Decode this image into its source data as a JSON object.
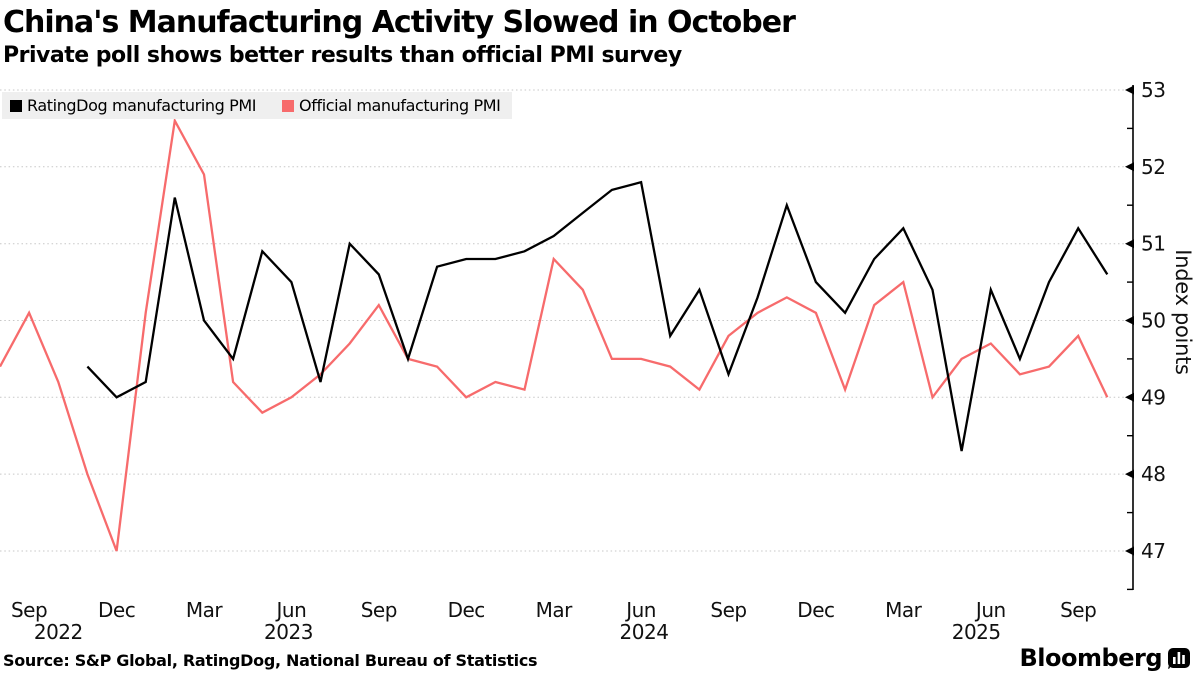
{
  "header": {
    "title": "China's Manufacturing Activity Slowed in October",
    "subtitle": "Private poll shows better results than official PMI survey"
  },
  "footer": {
    "source": "Source: S&P Global, RatingDog, National Bureau of Statistics",
    "brand": "Bloomberg",
    "brand_icon": "bar-chart-bubble-icon"
  },
  "colors": {
    "ratingdog_line": "#000000",
    "official_line": "#f76b6c",
    "legend_background": "#efefef",
    "gridline": "#c7c7c7"
  },
  "chart_data": {
    "type": "line",
    "title": "China's Manufacturing Activity Slowed in October",
    "subtitle": "Private poll shows better results than official PMI survey",
    "ylabel": "Index points",
    "ylim": [
      46.5,
      53.2
    ],
    "yticks": [
      53,
      52,
      51,
      50,
      49,
      48,
      47
    ],
    "y_minor_step": 0.5,
    "grid": "dotted-horizontal",
    "legend_position": "top-left",
    "x_unit": "month",
    "x_range": [
      "2022-08",
      "2025-10"
    ],
    "xticks": [
      {
        "label": "Sep",
        "offset": 1
      },
      {
        "label": "Dec",
        "offset": 4
      },
      {
        "label": "Mar",
        "offset": 7
      },
      {
        "label": "Jun",
        "offset": 10
      },
      {
        "label": "Sep",
        "offset": 13
      },
      {
        "label": "Dec",
        "offset": 16
      },
      {
        "label": "Mar",
        "offset": 19
      },
      {
        "label": "Jun",
        "offset": 22
      },
      {
        "label": "Sep",
        "offset": 25
      },
      {
        "label": "Dec",
        "offset": 28
      },
      {
        "label": "Mar",
        "offset": 31
      },
      {
        "label": "Jun",
        "offset": 34
      },
      {
        "label": "Sep",
        "offset": 37
      }
    ],
    "year_labels": [
      {
        "label": "2022",
        "offset": 2.0
      },
      {
        "label": "2023",
        "offset": 9.9
      },
      {
        "label": "2024",
        "offset": 22.1
      },
      {
        "label": "2025",
        "offset": 33.5
      }
    ],
    "series": [
      {
        "name": "RatingDog manufacturing PMI",
        "color": "#000000",
        "start_month": "2022-11",
        "start_offset": 3,
        "values": [
          49.4,
          49.0,
          49.2,
          51.6,
          50.0,
          49.5,
          50.9,
          50.5,
          49.2,
          51.0,
          50.6,
          49.5,
          50.7,
          50.8,
          50.8,
          50.9,
          51.1,
          51.4,
          51.7,
          51.8,
          49.8,
          50.4,
          49.3,
          50.3,
          51.5,
          50.5,
          50.1,
          50.8,
          51.2,
          50.4,
          48.3,
          50.4,
          49.5,
          50.5,
          51.2,
          50.6
        ]
      },
      {
        "name": "Official manufacturing PMI",
        "color": "#f76b6c",
        "start_month": "2022-08",
        "start_offset": 0,
        "values": [
          49.4,
          50.1,
          49.2,
          48.0,
          47.0,
          50.1,
          52.6,
          51.9,
          49.2,
          48.8,
          49.0,
          49.3,
          49.7,
          50.2,
          49.5,
          49.4,
          49.0,
          49.2,
          49.1,
          50.8,
          50.4,
          49.5,
          49.5,
          49.4,
          49.1,
          49.8,
          50.1,
          50.3,
          50.1,
          49.1,
          50.2,
          50.5,
          49.0,
          49.5,
          49.7,
          49.3,
          49.4,
          49.8,
          49.0
        ]
      }
    ]
  }
}
